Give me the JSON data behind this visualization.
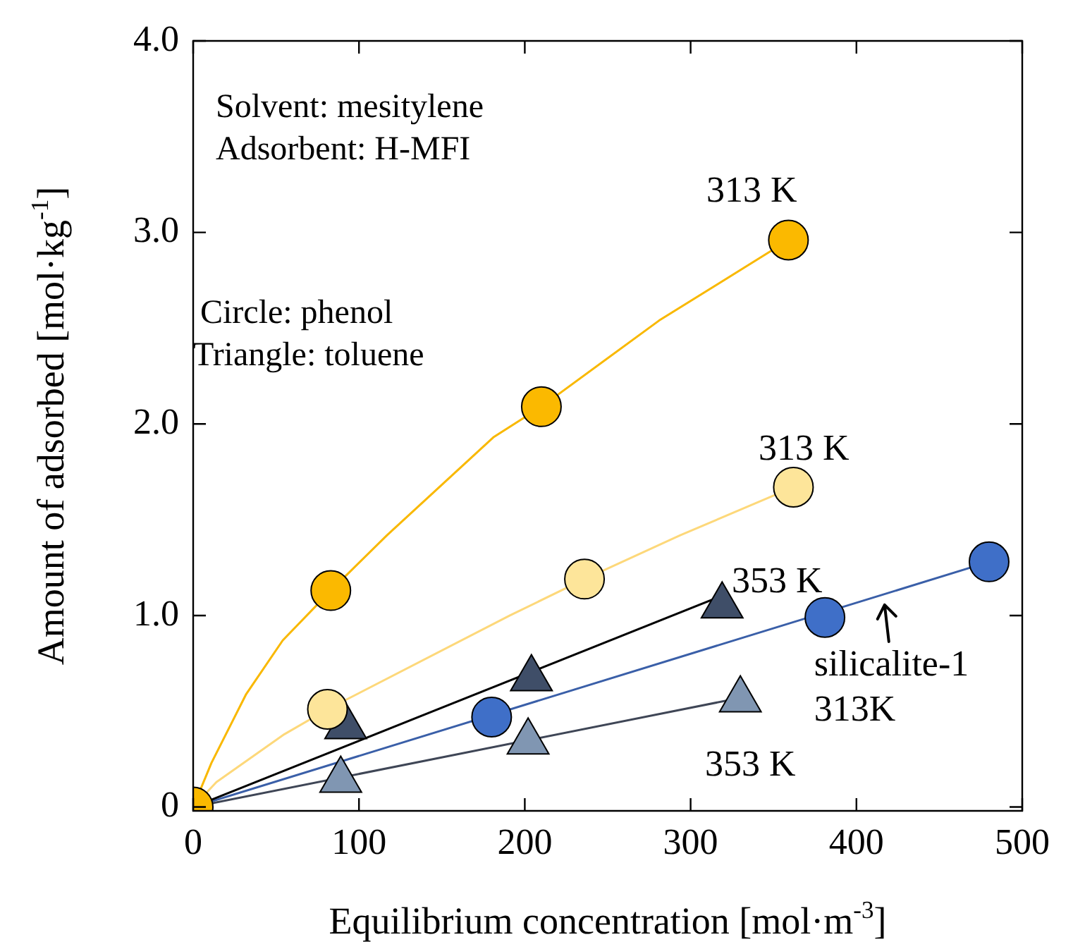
{
  "chart_data": {
    "type": "scatter",
    "xlabel": "Equilibrium concentration [mol·m$^{-3}$]",
    "ylabel": "Amount of adsorbed [mol·kg$^{-1}$]",
    "xlim": [
      0,
      500
    ],
    "xticks": [
      0,
      100,
      200,
      300,
      400,
      500
    ],
    "ylim": [
      -0.02,
      4.0
    ],
    "yticks": [
      0,
      {
        "value": 1,
        "label": "1.0"
      },
      {
        "value": 2,
        "label": "2.0"
      },
      {
        "value": 3,
        "label": "3.0"
      },
      {
        "value": 4,
        "label": "4.0"
      }
    ],
    "legend": false,
    "series": [
      {
        "type": "line",
        "color": "#f9b800",
        "marker": "none",
        "x": [
          0,
          11,
          32,
          54,
          83,
          117,
          181,
          210,
          281,
          359
        ],
        "values": [
          0,
          0.23,
          0.59,
          0.87,
          1.13,
          1.42,
          1.93,
          2.09,
          2.54,
          2.96
        ]
      },
      {
        "type": "line",
        "color": "#fdd87a",
        "marker": "none",
        "x": [
          0,
          14,
          55,
          81,
          191,
          236,
          294,
          362
        ],
        "values": [
          0,
          0.13,
          0.38,
          0.51,
          1.0,
          1.19,
          1.42,
          1.67
        ]
      },
      {
        "type": "line",
        "color": "#000000",
        "marker": "none",
        "x": [
          0,
          318
        ],
        "values": [
          0,
          1.1
        ]
      },
      {
        "type": "line",
        "color": "#3f4656",
        "marker": "none",
        "x": [
          0,
          330
        ],
        "values": [
          0,
          0.57
        ]
      },
      {
        "type": "line",
        "color": "#3a5fa8",
        "marker": "none",
        "x": [
          0,
          480
        ],
        "values": [
          0,
          1.28
        ]
      },
      {
        "type": "scatter",
        "color": "#fde59a",
        "marker": "circle",
        "x": [
          81,
          236,
          362
        ],
        "values": [
          0.51,
          1.19,
          1.67
        ]
      },
      {
        "type": "scatter",
        "color": "#8096b2",
        "marker": "triangle",
        "x": [
          89,
          202,
          330
        ],
        "values": [
          0.14,
          0.34,
          0.56
        ]
      },
      {
        "type": "scatter",
        "color": "#3f4e68",
        "marker": "triangle",
        "x": [
          92,
          204,
          319
        ],
        "values": [
          0.42,
          0.67,
          1.05
        ]
      },
      {
        "type": "scatter",
        "color": "#3f6fc8",
        "marker": "circle",
        "x": [
          180,
          381,
          480
        ],
        "values": [
          0.47,
          0.99,
          1.28
        ]
      },
      {
        "type": "scatter",
        "color": "#fbb900",
        "marker": "circle",
        "x": [
          0,
          83,
          210,
          359
        ],
        "values": [
          0,
          1.13,
          2.09,
          2.96
        ]
      }
    ],
    "annotations": [
      "Solvent: mesitylene",
      "Adsorbent: H-MFI",
      "Circle: phenol",
      "Triangle: toluene",
      "313 K",
      "313 K",
      "353 K",
      "353 K",
      {
        "text": "silicalite-1\n313K",
        "x": 417,
        "y": 1.07
      }
    ]
  }
}
